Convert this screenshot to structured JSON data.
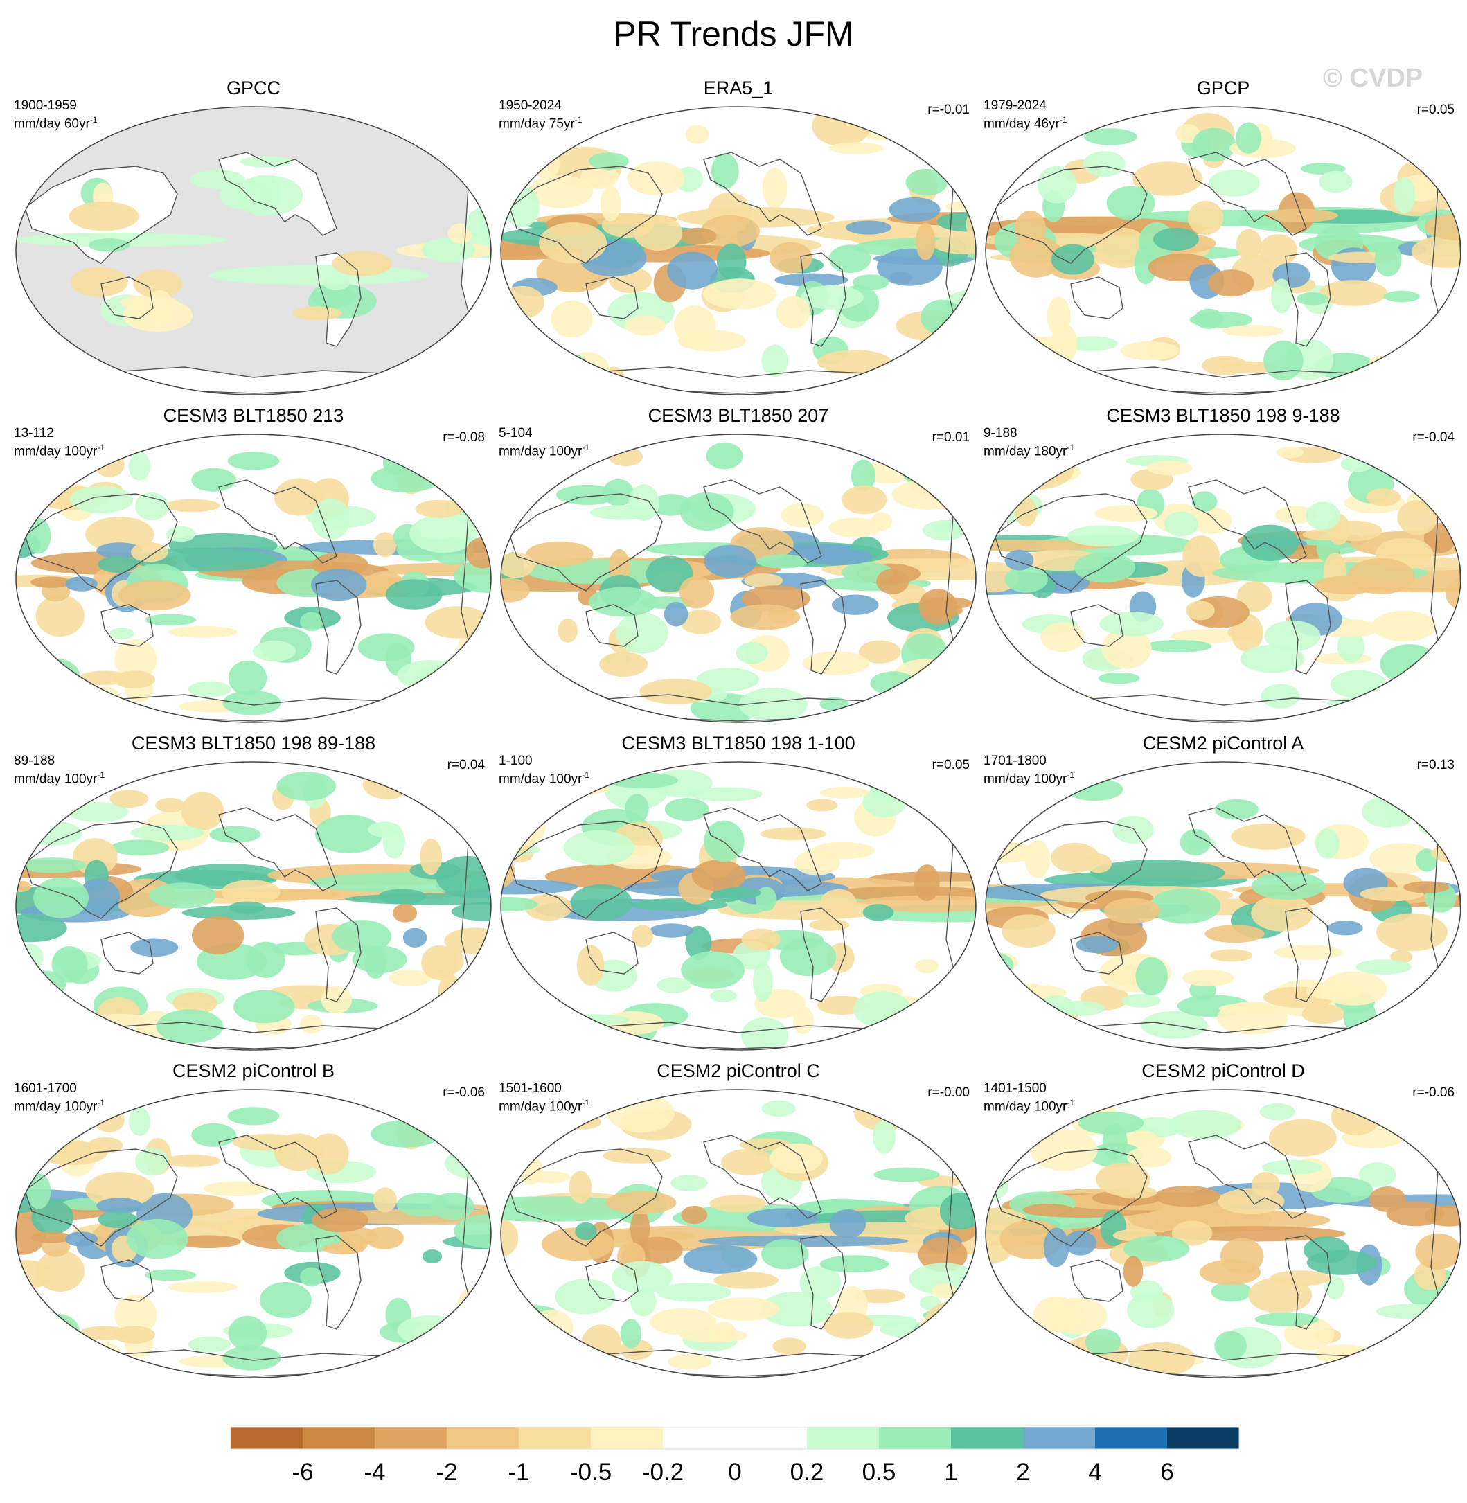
{
  "chart_data": {
    "type": "heatmap",
    "title": "PR Trends JFM",
    "watermark": "© CVDP",
    "projection_note": "Robinson global maps, Pacific-centered",
    "colorbar": {
      "boundaries": [
        "-6",
        "-4",
        "-2",
        "-1",
        "-0.5",
        "-0.2",
        "0",
        "0.2",
        "0.5",
        "1",
        "2",
        "4",
        "6"
      ],
      "colors": [
        "#b66a2c",
        "#cc8740",
        "#dea462",
        "#efc782",
        "#f7de9e",
        "#fff3c1",
        "#ffffff",
        "#ffffff",
        "#c8fcd0",
        "#99ecb6",
        "#5cc3a1",
        "#73a9ce",
        "#1b6fb0",
        "#0a3d64"
      ]
    },
    "panels": [
      {
        "title": "GPCC",
        "period": "1900-1959",
        "units": "mm/day 60yr",
        "corr": "",
        "land_only": true
      },
      {
        "title": "ERA5_1",
        "period": "1950-2024",
        "units": "mm/day 75yr",
        "corr": "r=-0.01"
      },
      {
        "title": "GPCP",
        "period": "1979-2024",
        "units": "mm/day 46yr",
        "corr": "r=0.05"
      },
      {
        "title": "CESM3 BLT1850 213",
        "period": "13-112",
        "units": "mm/day 100yr",
        "corr": "r=-0.08"
      },
      {
        "title": "CESM3 BLT1850 207",
        "period": "5-104",
        "units": "mm/day 100yr",
        "corr": "r=0.01"
      },
      {
        "title": "CESM3 BLT1850 198 9-188",
        "period": "9-188",
        "units": "mm/day 180yr",
        "corr": "r=-0.04"
      },
      {
        "title": "CESM3 BLT1850 198 89-188",
        "period": "89-188",
        "units": "mm/day 100yr",
        "corr": "r=0.04"
      },
      {
        "title": "CESM3 BLT1850 198 1-100",
        "period": "1-100",
        "units": "mm/day 100yr",
        "corr": "r=0.05"
      },
      {
        "title": "CESM2 piControl A",
        "period": "1701-1800",
        "units": "mm/day 100yr",
        "corr": "r=0.13"
      },
      {
        "title": "CESM2 piControl B",
        "period": "1601-1700",
        "units": "mm/day 100yr",
        "corr": "r=-0.06"
      },
      {
        "title": "CESM2 piControl C",
        "period": "1501-1600",
        "units": "mm/day 100yr",
        "corr": "r=-0.00"
      },
      {
        "title": "CESM2 piControl D",
        "period": "1401-1500",
        "units": "mm/day 100yr",
        "corr": "r=-0.06"
      }
    ]
  }
}
